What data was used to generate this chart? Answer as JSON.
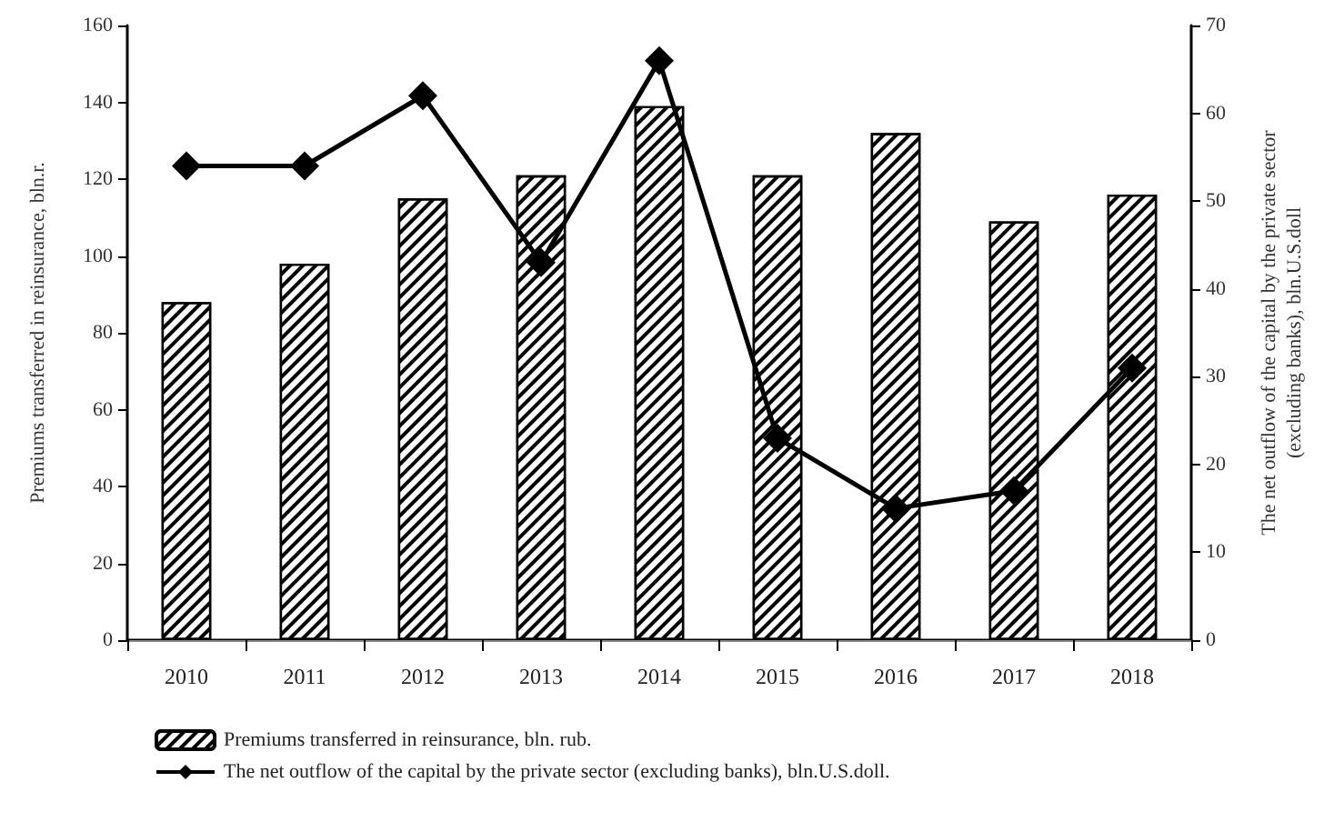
{
  "chart_data": {
    "type": "bar",
    "categories": [
      "2010",
      "2011",
      "2012",
      "2013",
      "2014",
      "2015",
      "2016",
      "2017",
      "2018"
    ],
    "series": [
      {
        "name": "Premiums transferred in reinsurance, bln. rub.",
        "color": "#ffffff",
        "values": [
          88,
          98,
          115,
          121,
          139,
          121,
          132,
          109,
          116
        ]
      },
      {
        "name": "The net outflow of the capital by the private sector (excluding banks), bln.U.S.doll.",
        "type": "line",
        "axis": "y2",
        "color": "#000000",
        "marker": "diamond",
        "values": [
          54,
          54,
          62,
          43,
          66,
          23,
          15,
          17,
          31
        ]
      }
    ],
    "ylabel": "Premiums transferred in reinsurance, bln.r.",
    "y2label": "The net outflow of the capital by the private sector\n(excluding banks), bln.U.S.doll",
    "ylim": [
      0,
      160
    ],
    "yticks": [
      0,
      20,
      40,
      60,
      80,
      100,
      120,
      140,
      160
    ],
    "y2lim": [
      0,
      70
    ],
    "y2ticks": [
      0,
      10,
      20,
      30,
      40,
      50,
      60,
      70
    ],
    "grid": false,
    "legend": "bottom"
  }
}
